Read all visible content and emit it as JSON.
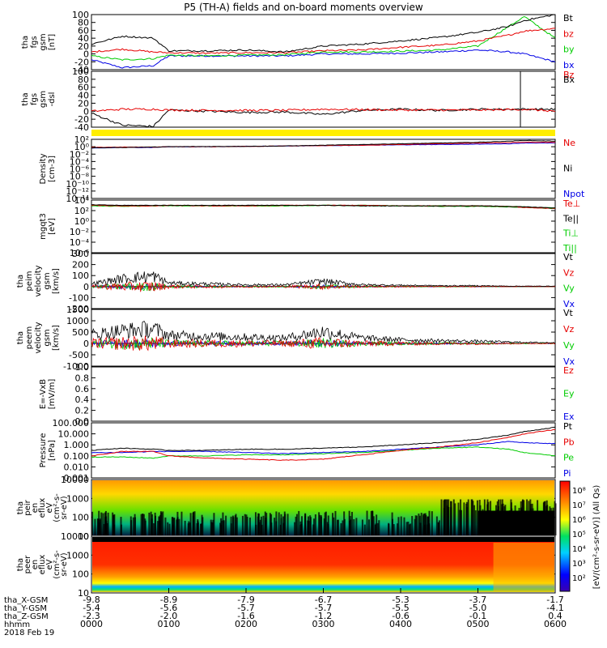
{
  "title": "P5 (TH-A) fields and on-board moments overview",
  "colors": {
    "black": "#000000",
    "red": "#e60000",
    "green": "#00cc00",
    "blue": "#0000e6",
    "yellow": "#ffee00"
  },
  "panels": [
    {
      "id": "fgs-gsm",
      "ylabel": [
        "tha",
        "fgs",
        "gsm",
        "[nT]"
      ],
      "ticks": [
        "100",
        "80",
        "60",
        "40",
        "20",
        "0",
        "-20",
        "-40"
      ],
      "legend": [
        {
          "label": "Bt",
          "color": "black"
        },
        {
          "label": "bz",
          "color": "red"
        },
        {
          "label": "by",
          "color": "green"
        },
        {
          "label": "bx",
          "color": "blue"
        }
      ]
    },
    {
      "id": "fgs-dsl",
      "ylabel": [
        "tha",
        "fgs",
        "gsm",
        "-dsl"
      ],
      "ticks": [
        "100",
        "80",
        "60",
        "40",
        "20",
        "0",
        "-20",
        "-40"
      ],
      "legend": [
        {
          "label": "Bz",
          "color": "red"
        },
        {
          "label": "Bx",
          "color": "black"
        }
      ]
    },
    {
      "id": "density",
      "ylabel": [
        "Density",
        "[cm-3]"
      ],
      "ticks": [
        "10²",
        "10⁰",
        "10⁻²",
        "10⁻⁴",
        "10⁻⁶",
        "10⁻⁸",
        "10⁻¹⁰",
        "10⁻¹²",
        "10⁻¹⁴"
      ],
      "legend": [
        {
          "label": "Ne",
          "color": "red"
        },
        {
          "label": "Ni",
          "color": "black"
        },
        {
          "label": "Npot",
          "color": "blue"
        }
      ]
    },
    {
      "id": "temperature",
      "ylabel": [
        "mgqt3",
        "[eV]"
      ],
      "ticks": [
        "10⁴",
        "10²",
        "10⁰",
        "10⁻²",
        "10⁻⁴",
        "10⁻⁶"
      ],
      "legend": [
        {
          "label": "Te⊥",
          "color": "red"
        },
        {
          "label": "Te||",
          "color": "black"
        },
        {
          "label": "Ti⊥",
          "color": "green"
        },
        {
          "label": "Ti||",
          "color": "green"
        }
      ]
    },
    {
      "id": "peim-velocity",
      "ylabel": [
        "tha",
        "peim",
        "velocity",
        "gsm",
        "[km/s]"
      ],
      "ticks": [
        "300",
        "200",
        "100",
        "0",
        "-100",
        "-200"
      ],
      "legend": [
        {
          "label": "Vt",
          "color": "black"
        },
        {
          "label": "Vz",
          "color": "red"
        },
        {
          "label": "Vy",
          "color": "green"
        },
        {
          "label": "Vx",
          "color": "blue"
        }
      ]
    },
    {
      "id": "peem-velocity",
      "ylabel": [
        "tha",
        "peem",
        "velocity",
        "gsm",
        "[km/s]"
      ],
      "ticks": [
        "1500",
        "1000",
        "500",
        "0",
        "-500",
        "-1000"
      ],
      "legend": [
        {
          "label": "Vt",
          "color": "black"
        },
        {
          "label": "Vz",
          "color": "red"
        },
        {
          "label": "Vy",
          "color": "green"
        },
        {
          "label": "Vx",
          "color": "blue"
        }
      ]
    },
    {
      "id": "efield",
      "ylabel": [
        "E=-VxB",
        "[mV/m]"
      ],
      "ticks": [
        "1.0",
        "0.8",
        "0.6",
        "0.4",
        "0.2",
        "0.0"
      ],
      "legend": [
        {
          "label": "Ez",
          "color": "red"
        },
        {
          "label": "Ey",
          "color": "green"
        },
        {
          "label": "Ex",
          "color": "blue"
        }
      ]
    },
    {
      "id": "pressure",
      "ylabel": [
        "Pressure",
        "[nPa]"
      ],
      "ticks": [
        "100.000",
        "10.000",
        "1.000",
        "0.100",
        "0.010",
        "0.001"
      ],
      "legend": [
        {
          "label": "Pt",
          "color": "black"
        },
        {
          "label": "Pb",
          "color": "red"
        },
        {
          "label": "Pe",
          "color": "green"
        },
        {
          "label": "Pi",
          "color": "blue"
        }
      ]
    },
    {
      "id": "peir-spectrogram",
      "ylabel": [
        "tha",
        "peir",
        "en",
        "eflux",
        "eV",
        "(cm²-s-",
        "sr-eV)"
      ],
      "ticks": [
        "10000",
        "1000",
        "100",
        "10"
      ]
    },
    {
      "id": "peer-spectrogram",
      "ylabel": [
        "tha",
        "peer",
        "en",
        "eflux",
        "eV",
        "(cm²-s-",
        "sr-eV)"
      ],
      "ticks": [
        "10000",
        "1000",
        "100",
        "10"
      ]
    }
  ],
  "colorbar": {
    "label": "[eV/(cm²-s-sr-eV)] (All Qs)",
    "ticks": [
      "10⁸",
      "10⁷",
      "10⁶",
      "10⁵",
      "10⁴",
      "10³",
      "10²"
    ]
  },
  "chart_data": {
    "type": "line",
    "title": "P5 (TH-A) fields and on-board moments overview",
    "date_label": "2018 Feb 19",
    "x_time_labels": [
      "0000",
      "0100",
      "0200",
      "0300",
      "0400",
      "0500",
      "0600"
    ],
    "x_rows": [
      {
        "label": "tha_X-GSM",
        "values": [
          "-9.8",
          "-8.9",
          "-7.9",
          "-6.7",
          "-5.3",
          "-3.7",
          "-1.7"
        ]
      },
      {
        "label": "tha_Y-GSM",
        "values": [
          "-5.4",
          "-5.6",
          "-5.7",
          "-5.7",
          "-5.5",
          "-5.0",
          "-4.1"
        ]
      },
      {
        "label": "tha_Z-GSM",
        "values": [
          "-2.3",
          "-2.0",
          "-1.6",
          "-1.2",
          "-0.6",
          "-0.1",
          "0.4"
        ]
      },
      {
        "label": "hhmm",
        "values": [
          "0000",
          "0100",
          "0200",
          "0300",
          "0400",
          "0500",
          "0600"
        ]
      }
    ],
    "x_hours": [
      0,
      0.4,
      0.8,
      1.0,
      1.5,
      2.0,
      2.5,
      3.0,
      3.5,
      4.0,
      4.5,
      5.0,
      5.4,
      5.6,
      6.0
    ],
    "series": {
      "fgs": {
        "Bt": [
          25,
          45,
          40,
          8,
          8,
          10,
          5,
          20,
          25,
          33,
          42,
          55,
          70,
          85,
          100
        ],
        "bz": [
          5,
          12,
          5,
          3,
          2,
          3,
          3,
          8,
          10,
          17,
          22,
          33,
          48,
          58,
          65
        ],
        "by": [
          -5,
          -15,
          -12,
          -3,
          -5,
          -3,
          -2,
          5,
          5,
          7,
          10,
          20,
          70,
          95,
          40
        ],
        "bx": [
          -15,
          -35,
          -30,
          -5,
          -5,
          -5,
          -5,
          0,
          0,
          2,
          5,
          10,
          5,
          0,
          -20
        ]
      },
      "fgs_dsl": {
        "Bz": [
          0,
          5,
          5,
          3,
          2,
          2,
          2,
          5,
          4,
          3,
          3,
          3,
          4,
          5,
          0
        ],
        "Bx": [
          -5,
          -35,
          -38,
          3,
          0,
          -3,
          -2,
          -8,
          2,
          5,
          2,
          5,
          5,
          5,
          5
        ]
      },
      "density_log": {
        "Ne": [
          -0.2,
          -0.1,
          -0.1,
          0,
          0,
          0.1,
          0.2,
          0.3,
          0.4,
          0.6,
          0.8,
          1.0,
          1.1,
          1.2,
          1.2
        ],
        "Ni": [
          -0.3,
          -0.2,
          -0.1,
          0,
          0.05,
          0.1,
          0.2,
          0.4,
          0.6,
          0.8,
          1.0,
          1.2,
          1.5,
          1.7,
          1.5
        ],
        "Npot": [
          -0.4,
          -0.2,
          -0.2,
          0,
          0,
          0.1,
          0.2,
          0.3,
          0.4,
          0.5,
          0.6,
          0.7,
          0.8,
          1.0,
          1.0
        ]
      },
      "temperature_log": {
        "Te_perp": [
          3.0,
          2.9,
          2.9,
          3.0,
          2.9,
          2.9,
          3.0,
          3.0,
          3.0,
          2.9,
          2.9,
          2.9,
          2.8,
          2.6,
          2.4
        ],
        "Te_par": [
          3.1,
          3.0,
          3.0,
          3.0,
          3.0,
          3.0,
          3.0,
          3.0,
          2.9,
          2.9,
          2.9,
          2.9,
          2.8,
          2.7,
          2.5
        ],
        "Ti_perp": [
          2.9,
          2.8,
          2.9,
          2.9,
          2.9,
          2.9,
          2.9,
          3.0,
          2.9,
          2.9,
          2.8,
          2.8,
          2.7,
          2.6,
          2.4
        ],
        "Ti_par": [
          3.0,
          2.9,
          2.9,
          3.0,
          2.9,
          2.9,
          2.9,
          3.0,
          3.0,
          2.9,
          2.9,
          2.9,
          2.8,
          2.7,
          2.5
        ]
      },
      "peim_Vt": [
        30,
        90,
        120,
        40,
        30,
        20,
        20,
        60,
        20,
        15,
        10,
        10,
        5,
        5,
        5
      ],
      "peem_Vt": [
        500,
        700,
        800,
        450,
        400,
        350,
        300,
        650,
        300,
        200,
        150,
        120,
        80,
        60,
        40
      ],
      "pressure_log": {
        "Pt": [
          -0.5,
          -0.3,
          -0.4,
          -0.5,
          -0.5,
          -0.4,
          -0.4,
          -0.3,
          -0.2,
          0,
          0.2,
          0.5,
          0.9,
          1.2,
          1.6
        ],
        "Pb": [
          -1.0,
          -0.6,
          -0.6,
          -1.0,
          -1.2,
          -1.3,
          -1.4,
          -1.3,
          -0.9,
          -0.5,
          -0.2,
          0.2,
          0.7,
          1.0,
          1.4
        ],
        "Pe": [
          -1.1,
          -1.1,
          -1.2,
          -1.0,
          -1.0,
          -0.9,
          -0.9,
          -0.8,
          -0.7,
          -0.5,
          -0.3,
          -0.2,
          -0.4,
          -0.7,
          -1.0
        ],
        "Pi": [
          -0.7,
          -0.7,
          -0.6,
          -0.6,
          -0.6,
          -0.7,
          -0.8,
          -0.7,
          -0.6,
          -0.4,
          -0.2,
          0,
          0.3,
          0.2,
          0.1
        ]
      }
    }
  }
}
